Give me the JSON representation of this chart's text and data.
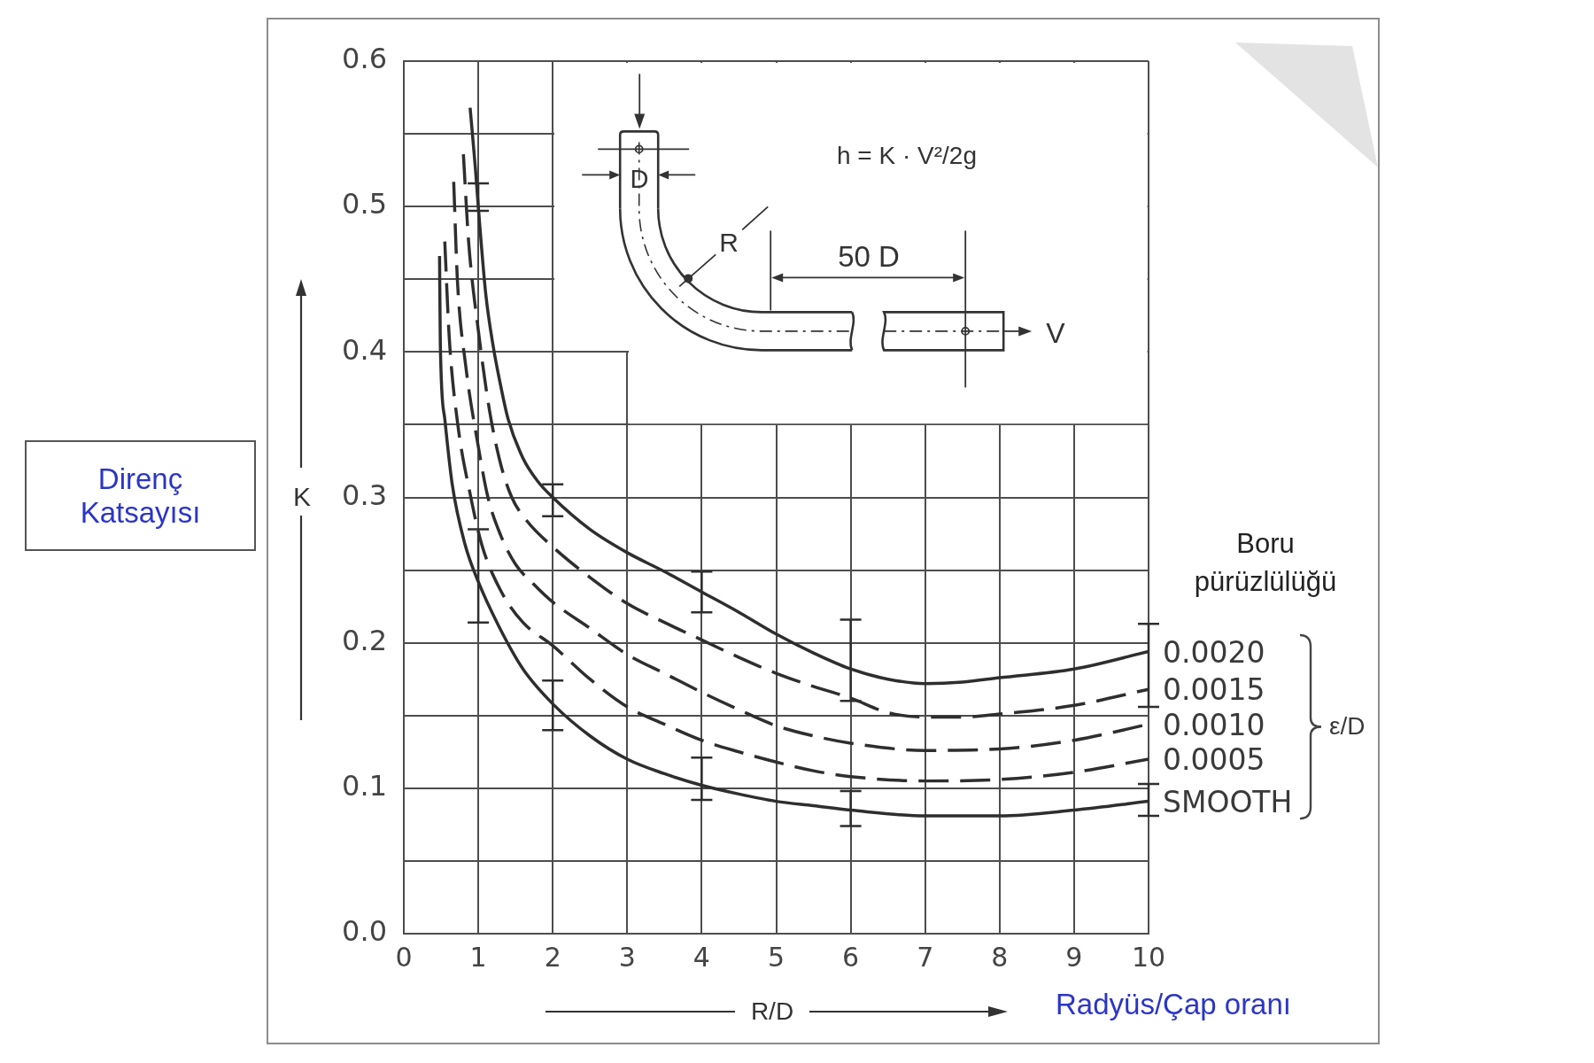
{
  "chart_data": {
    "type": "line",
    "xlabel": "R/D",
    "ylabel": "K",
    "legend_title": "Boru pürüzlülüğü",
    "annotations": [
      "Direnç Katsayısı",
      "Radyüs/Çap oranı",
      "h = K · V²/2g",
      "D",
      "R",
      "50 D",
      "V",
      "ε/D"
    ],
    "xlim": [
      0,
      10
    ],
    "xticks": [
      0,
      1,
      2,
      3,
      4,
      5,
      6,
      7,
      8,
      9,
      10
    ],
    "ylim": [
      0,
      0.6
    ],
    "yticks": [
      {
        "value": 0,
        "label": "0.0"
      },
      {
        "value": 0.05,
        "label": null
      },
      0.1,
      {
        "value": 0.15,
        "label": null
      },
      0.2,
      {
        "value": 0.25,
        "label": null
      },
      0.3,
      {
        "value": 0.35,
        "label": null
      },
      0.4,
      {
        "value": 0.45,
        "label": null
      },
      0.5,
      {
        "value": 0.55,
        "label": null
      },
      0.6
    ],
    "grid": true,
    "legend": "right",
    "marker": "none",
    "series": [
      {
        "name": "0.0020",
        "color": "#2e2e2e",
        "line_style": "solid",
        "x": [
          0.89,
          0.96,
          1,
          1.1,
          1.2,
          1.3,
          1.4,
          1.6,
          1.8,
          2,
          2.5,
          3,
          3.5,
          4,
          4.5,
          5,
          5.5,
          6,
          6.5,
          7,
          7.5,
          8,
          9,
          10
        ],
        "values": [
          0.568,
          0.527,
          0.5,
          0.44,
          0.404,
          0.377,
          0.354,
          0.327,
          0.311,
          0.3,
          0.278,
          0.262,
          0.249,
          0.235,
          0.221,
          0.206,
          0.193,
          0.182,
          0.175,
          0.172,
          0.173,
          0.176,
          0.182,
          0.194
        ],
        "errors": [
          null,
          null,
          [
            0.497,
            0.516
          ],
          null,
          null,
          null,
          null,
          null,
          null,
          [
            0.287,
            0.309
          ],
          null,
          null,
          null,
          [
            0.221,
            0.249
          ],
          null,
          null,
          null,
          [
            0.16,
            0.216
          ],
          null,
          null,
          null,
          null,
          null,
          [
            0.156,
            0.213
          ]
        ]
      },
      {
        "name": "0.0015",
        "color": "#2e2e2e",
        "line_style": "dashed",
        "x": [
          0.8,
          0.87,
          1,
          1.15,
          1.3,
          1.45,
          1.65,
          2,
          2.5,
          3,
          3.5,
          4,
          4.5,
          5,
          5.5,
          6,
          6.5,
          7,
          7.5,
          8,
          9,
          10
        ],
        "values": [
          0.536,
          0.476,
          0.415,
          0.36,
          0.323,
          0.3,
          0.284,
          0.266,
          0.245,
          0.227,
          0.214,
          0.202,
          0.19,
          0.179,
          0.17,
          0.162,
          0.152,
          0.149,
          0.149,
          0.151,
          0.157,
          0.168
        ]
      },
      {
        "name": "0.0010",
        "color": "#2e2e2e",
        "line_style": "dashed",
        "x": [
          0.67,
          0.72,
          0.83,
          1,
          1.13,
          1.3,
          1.5,
          1.75,
          2,
          2.5,
          3,
          3.5,
          4,
          4.5,
          5,
          5.5,
          6,
          7,
          8,
          9,
          10
        ],
        "values": [
          0.517,
          0.449,
          0.391,
          0.335,
          0.3,
          0.274,
          0.254,
          0.24,
          0.228,
          0.21,
          0.192,
          0.179,
          0.166,
          0.154,
          0.143,
          0.136,
          0.131,
          0.126,
          0.127,
          0.133,
          0.144
        ]
      },
      {
        "name": "0.0005",
        "color": "#2e2e2e",
        "line_style": "dashed",
        "x": [
          0.55,
          0.61,
          0.72,
          0.9,
          1.05,
          1.3,
          1.6,
          2,
          2.5,
          3,
          3.5,
          4,
          4.5,
          5,
          5.5,
          6,
          7,
          8,
          9,
          10
        ],
        "values": [
          0.476,
          0.41,
          0.352,
          0.3,
          0.267,
          0.236,
          0.214,
          0.198,
          0.175,
          0.156,
          0.144,
          0.133,
          0.125,
          0.118,
          0.112,
          0.108,
          0.105,
          0.106,
          0.111,
          0.12
        ]
      },
      {
        "name": "SMOOTH",
        "color": "#2e2e2e",
        "line_style": "solid",
        "x": [
          0.48,
          0.49,
          0.55,
          0.65,
          0.82,
          1,
          1.27,
          1.6,
          2,
          2.5,
          3,
          3.5,
          4,
          4.5,
          5,
          5.5,
          6,
          7,
          8,
          9,
          10
        ],
        "values": [
          0.466,
          0.406,
          0.354,
          0.309,
          0.268,
          0.242,
          0.212,
          0.182,
          0.158,
          0.136,
          0.12,
          0.11,
          0.102,
          0.096,
          0.091,
          0.088,
          0.085,
          0.081,
          0.081,
          0.085,
          0.091
        ],
        "errors": [
          null,
          null,
          null,
          null,
          null,
          [
            0.214,
            0.278
          ],
          null,
          null,
          [
            0.14,
            0.174
          ],
          null,
          null,
          null,
          [
            0.092,
            0.121
          ],
          null,
          null,
          null,
          [
            0.074,
            0.098
          ],
          null,
          null,
          null,
          [
            0.081,
            0.103
          ]
        ]
      }
    ]
  }
}
